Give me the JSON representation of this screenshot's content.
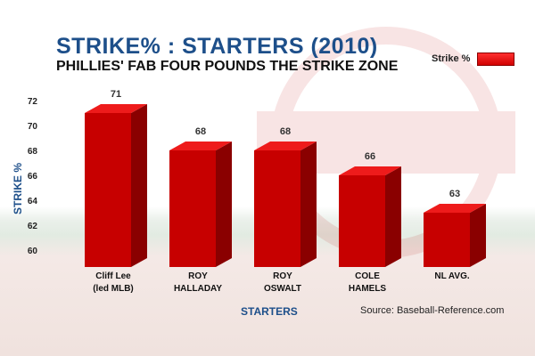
{
  "chart_data": {
    "type": "bar",
    "title": "STRIKE% : STARTERS (2010)",
    "subtitle": "PHILLIES' FAB FOUR POUNDS THE STRIKE ZONE",
    "xlabel": "STARTERS",
    "ylabel": "STRIKE %",
    "categories": [
      [
        "Cliff Lee",
        "(led MLB)"
      ],
      [
        "ROY",
        "HALLADAY"
      ],
      [
        "ROY",
        "OSWALT"
      ],
      [
        "COLE",
        "HAMELS"
      ],
      [
        "NL AVG."
      ]
    ],
    "series": [
      {
        "name": "Strike %",
        "values": [
          71,
          68,
          68,
          66,
          63
        ]
      }
    ],
    "value_labels": [
      "71",
      "68",
      "68",
      "66",
      "63"
    ],
    "ylim": [
      60,
      72
    ],
    "yticks": [
      60,
      62,
      64,
      66,
      68,
      70,
      72
    ],
    "grid": false,
    "legend_position": "top-right",
    "bar_color": "#e01010",
    "source": "Source: Baseball-Reference.com"
  }
}
